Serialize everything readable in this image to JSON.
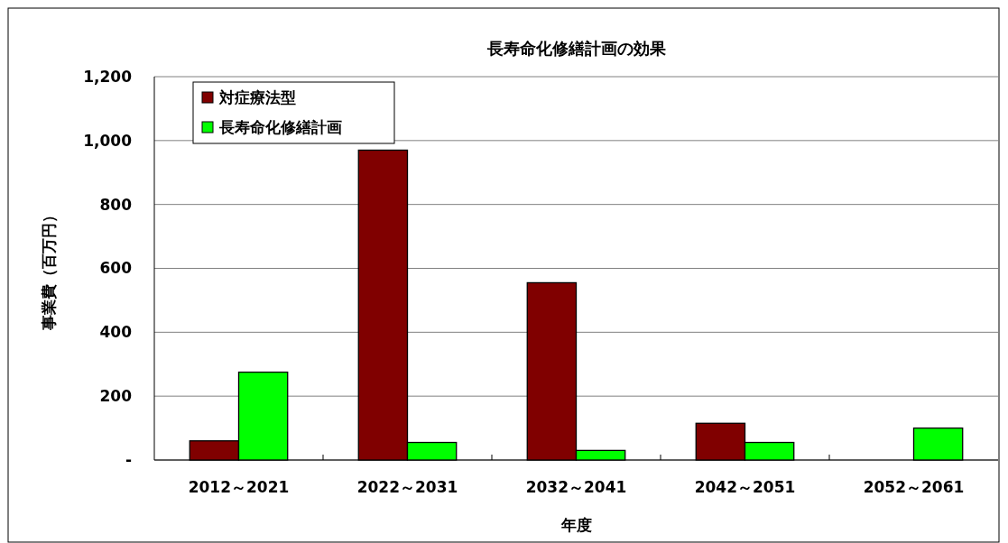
{
  "chart_data": {
    "type": "bar",
    "title": "長寿命化修繕計画の効果",
    "xlabel": "年度",
    "ylabel": "事業費（百万円）",
    "categories": [
      "2012～2021",
      "2022～2031",
      "2032～2041",
      "2042～2051",
      "2052～2061"
    ],
    "series": [
      {
        "name": "対症療法型",
        "color": "#800000",
        "values": [
          60,
          970,
          555,
          115,
          0
        ]
      },
      {
        "name": "長寿命化修繕計画",
        "color": "#00ff00",
        "values": [
          275,
          55,
          30,
          55,
          100
        ]
      }
    ],
    "ylim": [
      0,
      1200
    ],
    "yticks": [
      {
        "value": 0,
        "label": "-"
      },
      200,
      400,
      600,
      800,
      {
        "value": 1000,
        "label": "1,000"
      },
      {
        "value": 1200,
        "label": "1,200"
      }
    ],
    "grid": "y",
    "legend": "top left"
  }
}
